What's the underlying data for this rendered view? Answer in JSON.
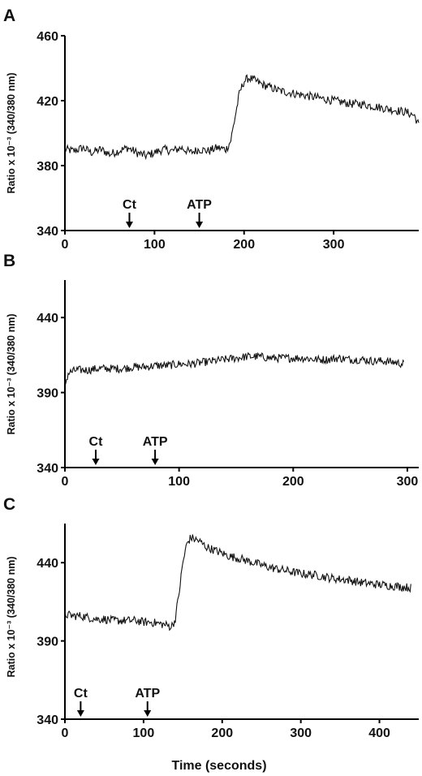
{
  "figure": {
    "shared_ylabel": "Ratio x 10⁻³ (340/380 nm)",
    "shared_xlabel": "Time (seconds)"
  },
  "chart_data": [
    {
      "type": "line",
      "panel_label": "A",
      "xlabel": "",
      "ylabel": "Ratio x 10⁻³ (340/380 nm)",
      "xlim": [
        0,
        395
      ],
      "ylim": [
        340,
        460
      ],
      "xticks": [
        0,
        100,
        200,
        300
      ],
      "yticks": [
        340,
        380,
        420,
        460
      ],
      "grid": false,
      "annotations": [
        {
          "text": "Ct",
          "x": 72
        },
        {
          "text": "ATP",
          "x": 150
        }
      ],
      "series": [
        {
          "x": [
            0,
            10,
            20,
            30,
            40,
            50,
            60,
            70,
            80,
            90,
            100,
            110,
            120,
            130,
            140,
            150,
            160,
            170,
            180,
            185,
            190,
            195,
            200,
            205,
            210,
            220,
            230,
            240,
            250,
            260,
            270,
            280,
            290,
            300,
            310,
            320,
            330,
            340,
            350,
            360,
            370,
            380,
            390,
            395
          ],
          "y": [
            390,
            389,
            391,
            388,
            390,
            387,
            389,
            391,
            388,
            386,
            388,
            390,
            389,
            391,
            388,
            390,
            389,
            391,
            390,
            395,
            410,
            425,
            432,
            434,
            433,
            430,
            428,
            426,
            425,
            424,
            423,
            422,
            421,
            420,
            419,
            418,
            418,
            417,
            416,
            415,
            414,
            413,
            411,
            405
          ]
        }
      ]
    },
    {
      "type": "line",
      "panel_label": "B",
      "xlabel": "",
      "ylabel": "Ratio x 10⁻³ (340/380 nm)",
      "xlim": [
        0,
        310
      ],
      "ylim": [
        340,
        465
      ],
      "xticks": [
        0,
        100,
        200,
        300
      ],
      "yticks": [
        340,
        390,
        440
      ],
      "grid": false,
      "annotations": [
        {
          "text": "Ct",
          "x": 27
        },
        {
          "text": "ATP",
          "x": 79
        }
      ],
      "series": [
        {
          "x": [
            0,
            3,
            10,
            20,
            30,
            40,
            50,
            60,
            70,
            80,
            90,
            100,
            110,
            120,
            130,
            140,
            150,
            160,
            170,
            180,
            190,
            200,
            210,
            220,
            230,
            240,
            250,
            260,
            270,
            280,
            290,
            297
          ],
          "y": [
            395,
            403,
            405,
            405,
            406,
            406,
            406,
            407,
            407,
            408,
            408,
            409,
            409,
            410,
            411,
            412,
            413,
            414,
            414,
            413,
            413,
            413,
            413,
            412,
            412,
            413,
            412,
            412,
            411,
            411,
            410,
            409
          ]
        }
      ]
    },
    {
      "type": "line",
      "panel_label": "C",
      "xlabel": "Time (seconds)",
      "ylabel": "Ratio x 10⁻³ (340/380 nm)",
      "xlim": [
        0,
        450
      ],
      "ylim": [
        340,
        465
      ],
      "xticks": [
        0,
        100,
        200,
        300,
        400
      ],
      "yticks": [
        340,
        390,
        440
      ],
      "grid": false,
      "annotations": [
        {
          "text": "Ct",
          "x": 20
        },
        {
          "text": "ATP",
          "x": 105
        }
      ],
      "series": [
        {
          "x": [
            0,
            10,
            20,
            30,
            40,
            50,
            60,
            70,
            80,
            90,
            100,
            110,
            120,
            130,
            135,
            140,
            145,
            150,
            155,
            160,
            165,
            170,
            180,
            190,
            200,
            210,
            220,
            240,
            260,
            280,
            300,
            320,
            340,
            360,
            380,
            400,
            420,
            440
          ],
          "y": [
            407,
            406,
            406,
            405,
            404,
            404,
            403,
            403,
            403,
            403,
            402,
            402,
            401,
            400,
            399,
            403,
            420,
            440,
            452,
            456,
            455,
            454,
            450,
            448,
            446,
            444,
            443,
            440,
            437,
            435,
            433,
            432,
            430,
            429,
            427,
            426,
            425,
            424
          ]
        }
      ]
    }
  ]
}
